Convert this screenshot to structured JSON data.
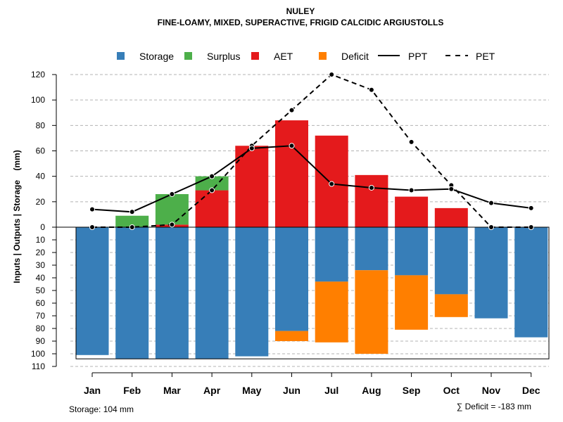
{
  "chart_data": {
    "type": "bar",
    "title": "NULEY",
    "subtitle": "FINE-LOAMY, MIXED, SUPERACTIVE, FRIGID CALCIDIC ARGIUSTOLLS",
    "ylabel": "Inputs | Outputs | Storage    (mm)",
    "categories": [
      "Jan",
      "Feb",
      "Mar",
      "Apr",
      "May",
      "Jun",
      "Jul",
      "Aug",
      "Sep",
      "Oct",
      "Nov",
      "Dec"
    ],
    "upper_ticks": [
      "0",
      "20",
      "40",
      "60",
      "80",
      "100",
      "120"
    ],
    "lower_ticks": [
      "10",
      "20",
      "30",
      "40",
      "50",
      "60",
      "70",
      "80",
      "90",
      "100",
      "110"
    ],
    "ylim_upper": [
      0,
      120
    ],
    "ylim_lower": [
      0,
      110
    ],
    "series": [
      {
        "name": "Storage",
        "color": "#377EB8",
        "values": [
          101,
          104,
          104,
          104,
          102,
          82,
          43,
          34,
          38,
          53,
          72,
          87
        ]
      },
      {
        "name": "Surplus",
        "color": "#4DAF4A",
        "values": [
          0,
          9,
          24,
          11,
          0,
          0,
          0,
          0,
          0,
          0,
          0,
          0
        ]
      },
      {
        "name": "AET",
        "color": "#E41A1C",
        "values": [
          0,
          0,
          2,
          29,
          64,
          84,
          72,
          41,
          24,
          15,
          0,
          0
        ]
      },
      {
        "name": "Deficit",
        "color": "#FF7F00",
        "values": [
          0,
          0,
          0,
          0,
          0,
          8,
          48,
          66,
          43,
          18,
          0,
          0
        ]
      },
      {
        "name": "PPT",
        "line": "solid",
        "values": [
          14,
          12,
          26,
          40,
          62,
          64,
          34,
          31,
          29,
          30,
          19,
          15
        ]
      },
      {
        "name": "PET",
        "line": "dashed",
        "values": [
          0,
          0,
          2,
          29,
          64,
          92,
          120,
          108,
          67,
          33,
          0,
          0
        ]
      }
    ],
    "storage_capacity": 104,
    "legend_labels": [
      "Storage",
      "Surplus",
      "AET",
      "Deficit",
      "PPT",
      "PET"
    ],
    "storage_note": "Storage: 104 mm",
    "deficit_note": "∑ Deficit = -183 mm"
  }
}
